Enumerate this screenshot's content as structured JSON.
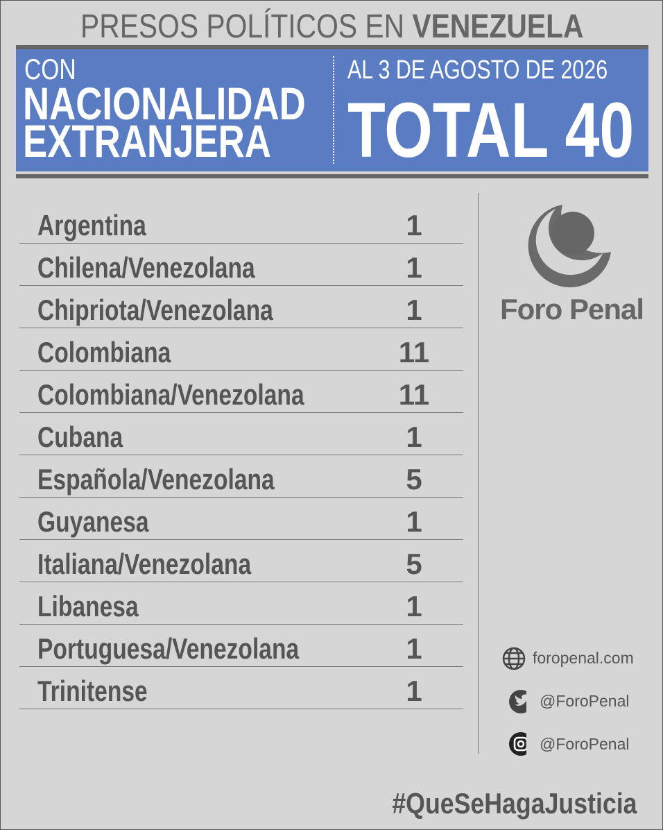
{
  "header": {
    "title_light": "PRESOS POLÍTICOS EN",
    "title_bold": "VENEZUELA"
  },
  "banner": {
    "line1": "CON",
    "line2": "NACIONALIDAD",
    "line3": "EXTRANJERA",
    "date": "AL 3 DE AGOSTO DE 2026",
    "total": "TOTAL 40"
  },
  "table": {
    "rows": [
      [
        "Argentina",
        1
      ],
      [
        "Chilena/Venezolana",
        1
      ],
      [
        "Chipriota/Venezolana",
        1
      ],
      [
        "Colombiana",
        11
      ],
      [
        "Colombiana/Venezolana",
        11
      ],
      [
        "Cubana",
        1
      ],
      [
        "Española/Venezolana",
        5
      ],
      [
        "Guyanesa",
        1
      ],
      [
        "Italiana/Venezolana",
        5
      ],
      [
        "Libanesa",
        1
      ],
      [
        "Portuguesa/Venezolana",
        1
      ],
      [
        "Trinitense",
        1
      ]
    ]
  },
  "logo": {
    "name": "Foro Penal"
  },
  "contacts": {
    "website": "foropenal.com",
    "twitter": "@ForoPenal",
    "instagram": "@ForoPenal"
  },
  "footer": {
    "hashtag": "#QueSeHagaJusticia"
  }
}
